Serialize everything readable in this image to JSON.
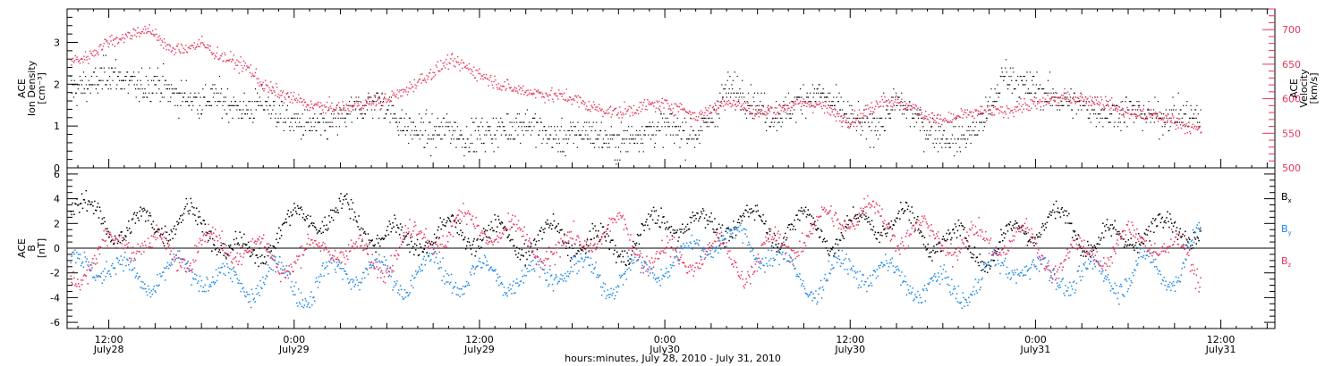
{
  "figure": {
    "xlabel": "hours:minutes, July 28, 2010 - July 31, 2010",
    "x_ticks": [
      {
        "t": 12,
        "time": "12:00",
        "date": "July28"
      },
      {
        "t": 24,
        "time": "0:00",
        "date": "July29"
      },
      {
        "t": 36,
        "time": "12:00",
        "date": "July29"
      },
      {
        "t": 48,
        "time": "0:00",
        "date": "July30"
      },
      {
        "t": 60,
        "time": "12:00",
        "date": "July30"
      },
      {
        "t": 72,
        "time": "0:00",
        "date": "July31"
      },
      {
        "t": 84,
        "time": "12:00",
        "date": "July31"
      }
    ],
    "xlim_hours_from_july28_0000": [
      9.3,
      87.5
    ],
    "data_end_hour": 82.7
  },
  "colors": {
    "black": "#000000",
    "red": "#e8345c",
    "blue": "#1e88e5"
  },
  "chart_data": [
    {
      "type": "scatter",
      "panel": "top",
      "ylabel_left": [
        "ACE",
        "Ion Density",
        "[cm⁻³]"
      ],
      "ylabel_right": [
        "ACE",
        "Velocity",
        "[km/s]"
      ],
      "ylim_left": [
        0,
        3.8
      ],
      "ylim_right": [
        500,
        730
      ],
      "left_ticks": [
        0,
        1,
        2,
        3
      ],
      "right_ticks": [
        500,
        550,
        600,
        650,
        700
      ],
      "series": [
        {
          "axis": "left",
          "color": "black",
          "x": [
            9.5,
            11,
            12,
            13,
            14,
            15,
            16,
            17,
            18,
            19,
            20,
            21,
            22,
            23,
            24,
            25,
            26,
            27,
            28,
            29,
            30,
            31,
            32,
            33,
            34,
            35,
            36,
            37,
            38,
            39,
            40,
            41,
            42,
            43,
            44,
            45,
            46,
            47,
            48,
            49,
            50,
            51,
            52,
            53,
            54,
            55,
            56,
            57,
            58,
            59,
            60,
            61,
            62,
            63,
            64,
            65,
            66,
            67,
            68,
            69,
            70,
            71,
            72,
            73,
            74,
            75,
            76,
            77,
            78,
            79,
            80,
            81,
            82.5
          ],
          "y": [
            1.9,
            2.0,
            2.3,
            2.1,
            1.9,
            2.1,
            1.8,
            1.7,
            1.6,
            1.7,
            1.5,
            1.4,
            1.6,
            1.3,
            1.1,
            1.0,
            1.0,
            1.2,
            1.4,
            1.6,
            1.5,
            1.0,
            0.9,
            0.8,
            1.0,
            0.7,
            0.8,
            0.9,
            1.0,
            1.1,
            0.9,
            0.7,
            0.8,
            0.9,
            0.7,
            0.6,
            0.8,
            0.9,
            1.0,
            0.9,
            0.8,
            1.2,
            1.9,
            1.8,
            1.5,
            1.2,
            1.4,
            1.7,
            1.8,
            1.5,
            1.2,
            1.0,
            1.1,
            1.6,
            1.3,
            0.9,
            0.8,
            0.7,
            0.9,
            1.4,
            2.3,
            2.0,
            1.9,
            1.7,
            1.6,
            1.5,
            1.4,
            1.3,
            1.4,
            1.3,
            1.2,
            1.3,
            1.2
          ]
        },
        {
          "axis": "right",
          "color": "red",
          "x": [
            9.5,
            10.5,
            12,
            13,
            14,
            15,
            16,
            17,
            18,
            19,
            20,
            21,
            22,
            23,
            24,
            25,
            26,
            27,
            28,
            29,
            30,
            31,
            32,
            33,
            34,
            35,
            36,
            37,
            38,
            39,
            40,
            41,
            42,
            43,
            44,
            45,
            46,
            47,
            48,
            49,
            50,
            51,
            52,
            53,
            54,
            55,
            56,
            57,
            58,
            59,
            60,
            61,
            62,
            63,
            64,
            65,
            66,
            67,
            68,
            69,
            70,
            71,
            72,
            73,
            74,
            75,
            76,
            77,
            78,
            79,
            80,
            81,
            82.5
          ],
          "y": [
            655,
            660,
            685,
            690,
            700,
            695,
            670,
            675,
            680,
            665,
            655,
            645,
            620,
            608,
            600,
            592,
            588,
            586,
            590,
            596,
            600,
            610,
            626,
            640,
            655,
            648,
            636,
            625,
            615,
            612,
            608,
            605,
            602,
            590,
            585,
            580,
            586,
            592,
            592,
            588,
            575,
            585,
            598,
            590,
            580,
            585,
            590,
            595,
            592,
            578,
            568,
            580,
            600,
            595,
            588,
            575,
            568,
            575,
            580,
            582,
            582,
            590,
            592,
            600,
            602,
            600,
            598,
            590,
            580,
            578,
            575,
            568,
            555
          ]
        }
      ]
    },
    {
      "type": "scatter",
      "panel": "bottom",
      "ylabel_left": [
        "ACE",
        "B",
        "[nT]"
      ],
      "ylim": [
        -6.5,
        6.5
      ],
      "y_ticks": [
        -6,
        -4,
        -2,
        0,
        2,
        4,
        6
      ],
      "legend": [
        {
          "name": "B",
          "sub": "x",
          "color": "black"
        },
        {
          "name": "B",
          "sub": "y",
          "color": "blue"
        },
        {
          "name": "B",
          "sub": "z",
          "color": "red"
        }
      ],
      "legend_placement": "right",
      "series": [
        {
          "name": "Bx",
          "color": "black",
          "x": [
            9.5,
            11,
            13,
            15,
            17,
            19,
            21,
            23,
            25,
            27,
            29,
            31,
            33,
            35,
            37,
            39,
            41,
            43,
            45,
            47,
            49,
            51,
            53,
            55,
            57,
            59,
            61,
            63,
            65,
            67,
            69,
            71,
            73,
            75,
            77,
            79,
            81,
            82.5
          ],
          "y": [
            3.8,
            2.5,
            1.5,
            2.0,
            2.5,
            1.0,
            -1.0,
            1.5,
            2.5,
            3.0,
            1.5,
            0.5,
            1.0,
            1.5,
            1.0,
            0.5,
            1.0,
            0.5,
            0.0,
            1.5,
            2.5,
            1.5,
            2.5,
            1.5,
            2.0,
            1.0,
            2.0,
            2.5,
            1.0,
            0.5,
            -0.5,
            1.5,
            2.5,
            1.0,
            0.5,
            1.5,
            1.8,
            1.6
          ]
        },
        {
          "name": "By",
          "color": "blue",
          "x": [
            9.5,
            11,
            13,
            15,
            17,
            19,
            21,
            23,
            25,
            27,
            29,
            31,
            33,
            35,
            37,
            39,
            41,
            43,
            45,
            47,
            49,
            51,
            53,
            55,
            57,
            59,
            61,
            63,
            65,
            67,
            69,
            71,
            73,
            75,
            77,
            79,
            81,
            82.5
          ],
          "y": [
            -1.5,
            -1.0,
            -2.0,
            -2.5,
            -1.5,
            -2.5,
            -3.0,
            -2.0,
            -3.5,
            -1.5,
            -2.0,
            -2.5,
            -1.5,
            -2.5,
            -2.0,
            -2.5,
            -1.5,
            -2.0,
            -2.5,
            -1.5,
            -1.0,
            1.0,
            0.5,
            -0.5,
            -3.0,
            -2.0,
            -1.5,
            -2.5,
            -3.0,
            -3.5,
            -2.0,
            -1.0,
            -2.5,
            -2.0,
            -2.5,
            -1.5,
            -2.0,
            0.5
          ]
        },
        {
          "name": "Bz",
          "color": "red",
          "x": [
            9.5,
            11,
            13,
            15,
            17,
            19,
            21,
            23,
            25,
            27,
            29,
            31,
            33,
            35,
            37,
            39,
            41,
            43,
            45,
            47,
            49,
            51,
            53,
            55,
            57,
            59,
            61,
            63,
            65,
            67,
            69,
            71,
            73,
            75,
            77,
            79,
            81,
            82.5
          ],
          "y": [
            -2.0,
            -1.0,
            1.0,
            0.0,
            -0.5,
            0.5,
            0.0,
            -1.0,
            -0.5,
            0.5,
            -1.5,
            0.5,
            1.0,
            2.0,
            1.5,
            0.5,
            -0.5,
            1.0,
            1.5,
            -0.5,
            -1.0,
            0.0,
            -1.5,
            0.0,
            1.0,
            2.5,
            3.0,
            1.5,
            1.0,
            0.5,
            0.5,
            1.0,
            -1.0,
            -0.5,
            0.0,
            1.0,
            0.0,
            -2.0
          ]
        }
      ]
    }
  ]
}
